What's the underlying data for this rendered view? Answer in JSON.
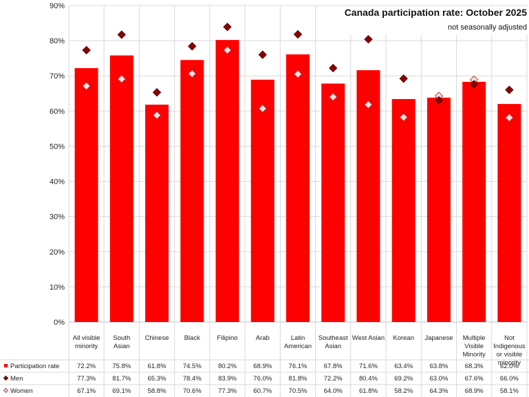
{
  "chart_data": {
    "type": "bar",
    "title": "Canada participation rate: October 2025",
    "subtitle": "not seasonally adjusted",
    "xlabel": "",
    "ylabel": "",
    "ylim": [
      0,
      90
    ],
    "yticks": [
      "0%",
      "10%",
      "20%",
      "30%",
      "40%",
      "50%",
      "60%",
      "70%",
      "80%",
      "90%"
    ],
    "grid": true,
    "legend": "data-table-bottom",
    "categories": [
      [
        "All visible",
        "minority"
      ],
      [
        "South",
        "Asian"
      ],
      [
        "Chinese"
      ],
      [
        "Black"
      ],
      [
        "Filipino"
      ],
      [
        "Arab"
      ],
      [
        "Latin",
        "American"
      ],
      [
        "Southeast",
        "Asian"
      ],
      [
        "West Asian"
      ],
      [
        "Korean"
      ],
      [
        "Japanese"
      ],
      [
        "Multiple",
        "Visible",
        "Minority"
      ],
      [
        "Not",
        "Indigenous",
        "or visible",
        "minority"
      ]
    ],
    "series": [
      {
        "name": "Participation rate",
        "type": "bar",
        "color": "#ff0000",
        "values": [
          72.2,
          75.8,
          61.8,
          74.5,
          80.2,
          68.9,
          76.1,
          67.8,
          71.6,
          63.4,
          63.8,
          68.3,
          62.0
        ],
        "labels": [
          "72.2%",
          "75.8%",
          "61.8%",
          "74.5%",
          "80.2%",
          "68.9%",
          "76.1%",
          "67.8%",
          "71.6%",
          "63.4%",
          "63.8%",
          "68.3%",
          "62.0%"
        ]
      },
      {
        "name": "Men",
        "type": "marker",
        "color": "#8b0000",
        "values": [
          77.3,
          81.7,
          65.3,
          78.4,
          83.9,
          76.0,
          81.8,
          72.2,
          80.4,
          69.2,
          63.0,
          67.6,
          66.0
        ],
        "labels": [
          "77.3%",
          "81.7%",
          "65.3%",
          "78.4%",
          "83.9%",
          "76.0%",
          "81.8%",
          "72.2%",
          "80.4%",
          "69.2%",
          "63.0%",
          "67.6%",
          "66.0%"
        ]
      },
      {
        "name": "Women",
        "type": "marker",
        "color": "#ffe0e0",
        "values": [
          67.1,
          69.1,
          58.8,
          70.6,
          77.3,
          60.7,
          70.5,
          64.0,
          61.8,
          58.2,
          64.3,
          68.9,
          58.1
        ],
        "labels": [
          "67.1%",
          "69.1%",
          "58.8%",
          "70.6%",
          "77.3%",
          "60.7%",
          "70.5%",
          "64.0%",
          "61.8%",
          "58.2%",
          "64.3%",
          "68.9%",
          "58.1%"
        ]
      }
    ]
  }
}
